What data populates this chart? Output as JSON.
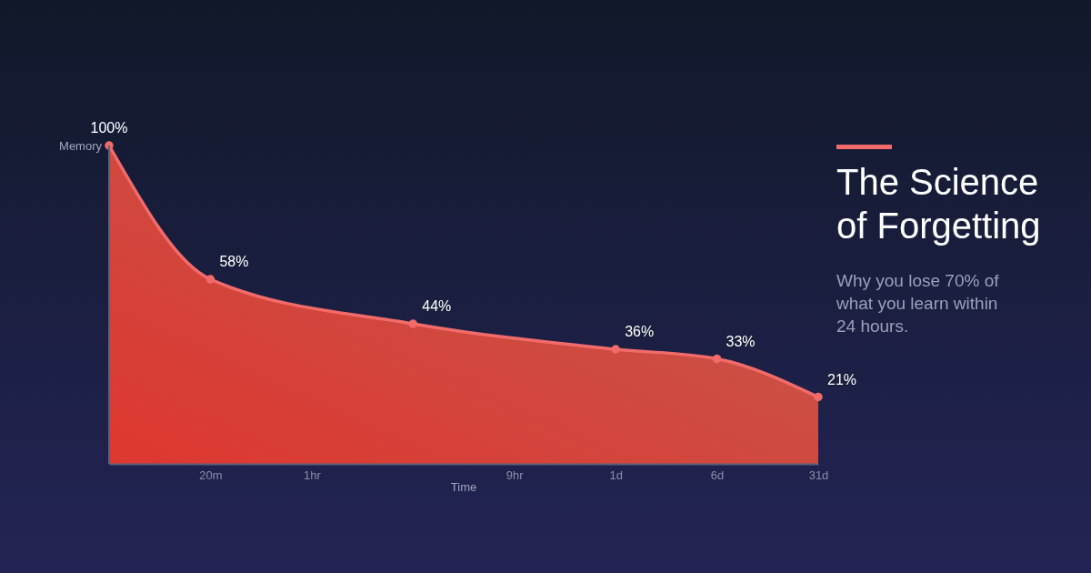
{
  "chart_data": {
    "type": "area",
    "title": "The Science of Forgetting",
    "subtitle": "Why you lose 70% of what you learn within 24 hours.",
    "xlabel": "Time",
    "ylabel": "Memory",
    "categories": [
      null,
      "20m",
      "1hr",
      null,
      "9hr",
      "1d",
      "6d",
      "31d"
    ],
    "series": [
      {
        "color": "#f26b6b",
        "values": [
          100,
          58,
          null,
          44,
          null,
          36,
          33,
          21
        ],
        "value_labels": [
          "100%",
          "58%",
          null,
          "44%",
          null,
          "36%",
          "33%",
          "21%"
        ]
      }
    ],
    "ylim": [
      0,
      100
    ],
    "tick_labels": "x",
    "marker": "circle"
  }
}
